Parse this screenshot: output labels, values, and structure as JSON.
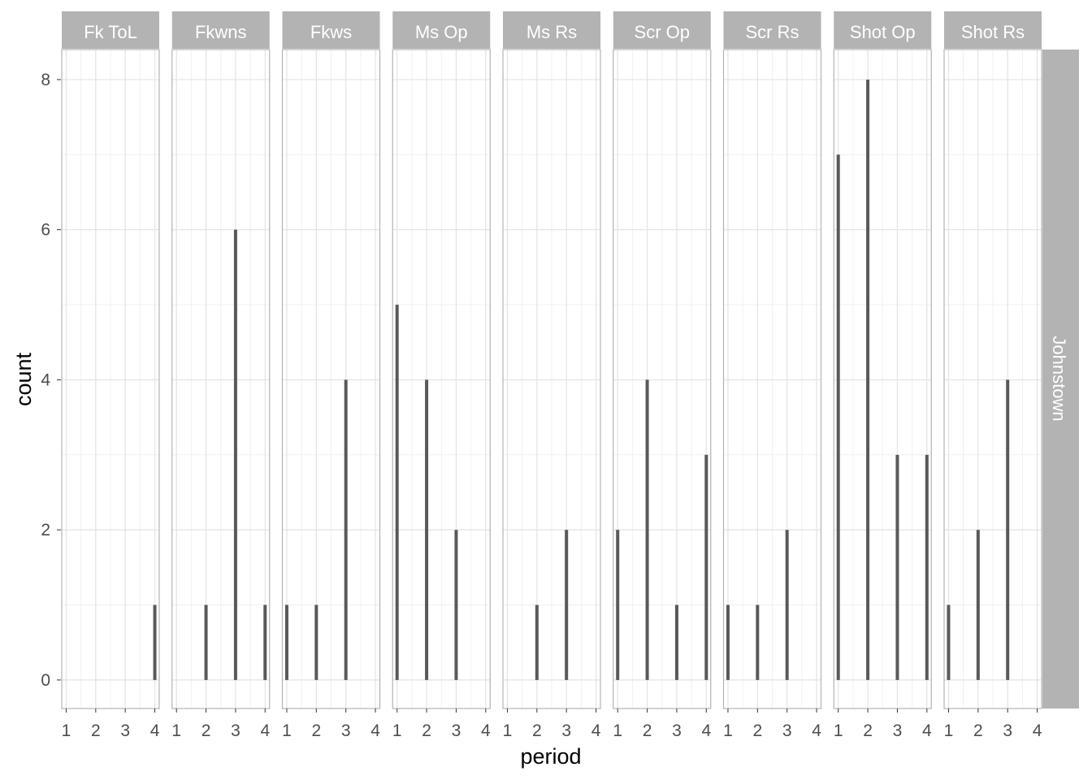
{
  "chart_data": {
    "type": "bar",
    "xlabel": "period",
    "ylabel": "count",
    "row_facet": "Johnstown",
    "x_ticks": [
      1,
      2,
      3,
      4
    ],
    "y_ticks": [
      0,
      2,
      4,
      6,
      8
    ],
    "xlim": [
      0.85,
      4.15
    ],
    "ylim": [
      -0.38,
      8.4
    ],
    "grid": true,
    "bar_color": "#595959",
    "strip_color": "#b3b3b3",
    "panels": [
      {
        "name": "Fk ToL",
        "x": [
          4
        ],
        "values": [
          1
        ]
      },
      {
        "name": "Fkwns",
        "x": [
          2,
          3,
          4
        ],
        "values": [
          1,
          6,
          1
        ]
      },
      {
        "name": "Fkws",
        "x": [
          1,
          2,
          3
        ],
        "values": [
          1,
          1,
          4
        ]
      },
      {
        "name": "Ms Op",
        "x": [
          1,
          2,
          3
        ],
        "values": [
          5,
          4,
          2
        ]
      },
      {
        "name": "Ms Rs",
        "x": [
          2,
          3
        ],
        "values": [
          1,
          2
        ]
      },
      {
        "name": "Scr Op",
        "x": [
          1,
          2,
          3,
          4
        ],
        "values": [
          2,
          4,
          1,
          3
        ]
      },
      {
        "name": "Scr Rs",
        "x": [
          1,
          2,
          3
        ],
        "values": [
          1,
          1,
          2
        ]
      },
      {
        "name": "Shot Op",
        "x": [
          1,
          2,
          3,
          4
        ],
        "values": [
          7,
          8,
          3,
          3
        ]
      },
      {
        "name": "Shot Rs",
        "x": [
          1,
          2,
          3
        ],
        "values": [
          1,
          2,
          4
        ]
      }
    ]
  }
}
